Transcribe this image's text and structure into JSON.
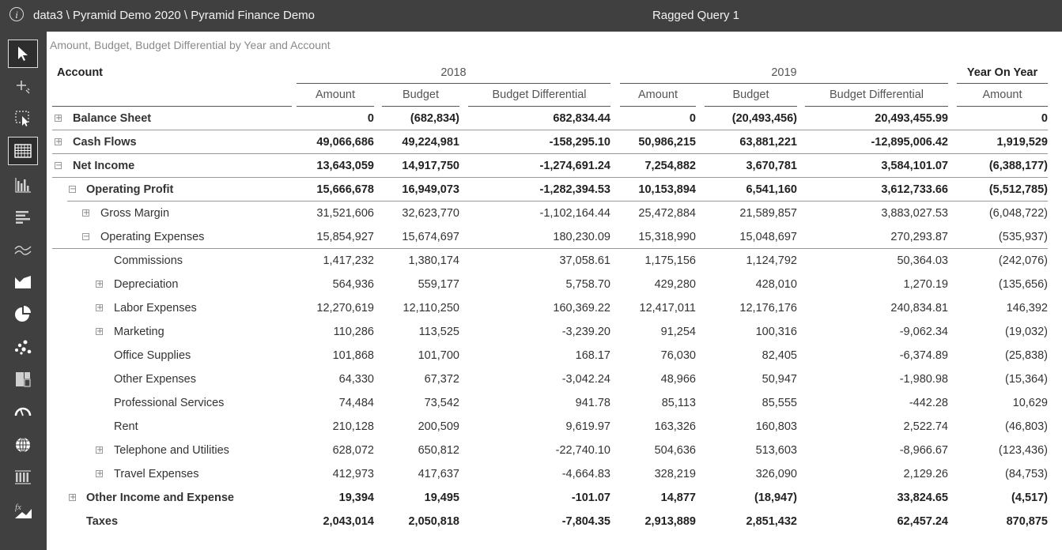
{
  "titlebar": {
    "breadcrumb": "data3 \\ Pyramid Demo 2020 \\ Pyramid Finance Demo",
    "query_title": "Ragged Query 1",
    "info_icon": "i"
  },
  "toolbar": {
    "tools": [
      "select-icon",
      "add-icon",
      "select-region-icon",
      "grid-icon",
      "bar-chart-icon",
      "horizontal-bar-icon",
      "line-chart-icon",
      "area-chart-icon",
      "pie-chart-icon",
      "scatter-icon",
      "treemap-icon",
      "gauge-icon",
      "globe-icon",
      "grid-dots-icon",
      "formula-icon"
    ],
    "active": [
      "select-icon",
      "grid-icon"
    ]
  },
  "report": {
    "subtitle": "Amount, Budget, Budget Differential by Year and Account",
    "account_header": "Account",
    "years": [
      "2018",
      "2019",
      "Year On Year"
    ],
    "measures": [
      "Amount",
      "Budget",
      "Budget Differential",
      "Amount",
      "Budget",
      "Budget Differential",
      "Amount"
    ],
    "rows": [
      {
        "label": "Balance Sheet",
        "exp": "+",
        "level": 0,
        "bold": true,
        "values": [
          "0",
          "(682,834)",
          "682,834.44",
          "0",
          "(20,493,456)",
          "20,493,455.99",
          "0"
        ]
      },
      {
        "label": "Cash Flows",
        "exp": "+",
        "level": 0,
        "bold": true,
        "values": [
          "49,066,686",
          "49,224,981",
          "-158,295.10",
          "50,986,215",
          "63,881,221",
          "-12,895,006.42",
          "1,919,529"
        ]
      },
      {
        "label": "Net Income",
        "exp": "−",
        "level": 0,
        "bold": true,
        "values": [
          "13,643,059",
          "14,917,750",
          "-1,274,691.24",
          "7,254,882",
          "3,670,781",
          "3,584,101.07",
          "(6,388,177)"
        ]
      },
      {
        "label": "Operating Profit",
        "exp": "−",
        "level": 1,
        "bold": true,
        "values": [
          "15,666,678",
          "16,949,073",
          "-1,282,394.53",
          "10,153,894",
          "6,541,160",
          "3,612,733.66",
          "(5,512,785)"
        ]
      },
      {
        "label": "Gross Margin",
        "exp": "+",
        "level": 2,
        "bold": false,
        "values": [
          "31,521,606",
          "32,623,770",
          "-1,102,164.44",
          "25,472,884",
          "21,589,857",
          "3,883,027.53",
          "(6,048,722)"
        ]
      },
      {
        "label": "Operating Expenses",
        "exp": "−",
        "level": 2,
        "bold": false,
        "values": [
          "15,854,927",
          "15,674,697",
          "180,230.09",
          "15,318,990",
          "15,048,697",
          "270,293.87",
          "(535,937)"
        ]
      },
      {
        "label": "Commissions",
        "exp": "",
        "level": 3,
        "bold": false,
        "values": [
          "1,417,232",
          "1,380,174",
          "37,058.61",
          "1,175,156",
          "1,124,792",
          "50,364.03",
          "(242,076)"
        ]
      },
      {
        "label": "Depreciation",
        "exp": "+",
        "level": 3,
        "bold": false,
        "values": [
          "564,936",
          "559,177",
          "5,758.70",
          "429,280",
          "428,010",
          "1,270.19",
          "(135,656)"
        ]
      },
      {
        "label": "Labor Expenses",
        "exp": "+",
        "level": 3,
        "bold": false,
        "values": [
          "12,270,619",
          "12,110,250",
          "160,369.22",
          "12,417,011",
          "12,176,176",
          "240,834.81",
          "146,392"
        ]
      },
      {
        "label": "Marketing",
        "exp": "+",
        "level": 3,
        "bold": false,
        "values": [
          "110,286",
          "113,525",
          "-3,239.20",
          "91,254",
          "100,316",
          "-9,062.34",
          "(19,032)"
        ]
      },
      {
        "label": "Office Supplies",
        "exp": "",
        "level": 3,
        "bold": false,
        "values": [
          "101,868",
          "101,700",
          "168.17",
          "76,030",
          "82,405",
          "-6,374.89",
          "(25,838)"
        ]
      },
      {
        "label": "Other Expenses",
        "exp": "",
        "level": 3,
        "bold": false,
        "values": [
          "64,330",
          "67,372",
          "-3,042.24",
          "48,966",
          "50,947",
          "-1,980.98",
          "(15,364)"
        ]
      },
      {
        "label": "Professional Services",
        "exp": "",
        "level": 3,
        "bold": false,
        "values": [
          "74,484",
          "73,542",
          "941.78",
          "85,113",
          "85,555",
          "-442.28",
          "10,629"
        ]
      },
      {
        "label": "Rent",
        "exp": "",
        "level": 3,
        "bold": false,
        "values": [
          "210,128",
          "200,509",
          "9,619.97",
          "163,326",
          "160,803",
          "2,522.74",
          "(46,803)"
        ]
      },
      {
        "label": "Telephone and Utilities",
        "exp": "+",
        "level": 3,
        "bold": false,
        "values": [
          "628,072",
          "650,812",
          "-22,740.10",
          "504,636",
          "513,603",
          "-8,966.67",
          "(123,436)"
        ]
      },
      {
        "label": "Travel Expenses",
        "exp": "+",
        "level": 3,
        "bold": false,
        "values": [
          "412,973",
          "417,637",
          "-4,664.83",
          "328,219",
          "326,090",
          "2,129.26",
          "(84,753)"
        ]
      },
      {
        "label": "Other Income and Expense",
        "exp": "+",
        "level": 1,
        "bold": true,
        "values": [
          "19,394",
          "19,495",
          "-101.07",
          "14,877",
          "(18,947)",
          "33,824.65",
          "(4,517)"
        ]
      },
      {
        "label": "Taxes",
        "exp": "",
        "level": 1,
        "bold": true,
        "values": [
          "2,043,014",
          "2,050,818",
          "-7,804.35",
          "2,913,889",
          "2,851,432",
          "62,457.24",
          "870,875"
        ]
      }
    ]
  }
}
